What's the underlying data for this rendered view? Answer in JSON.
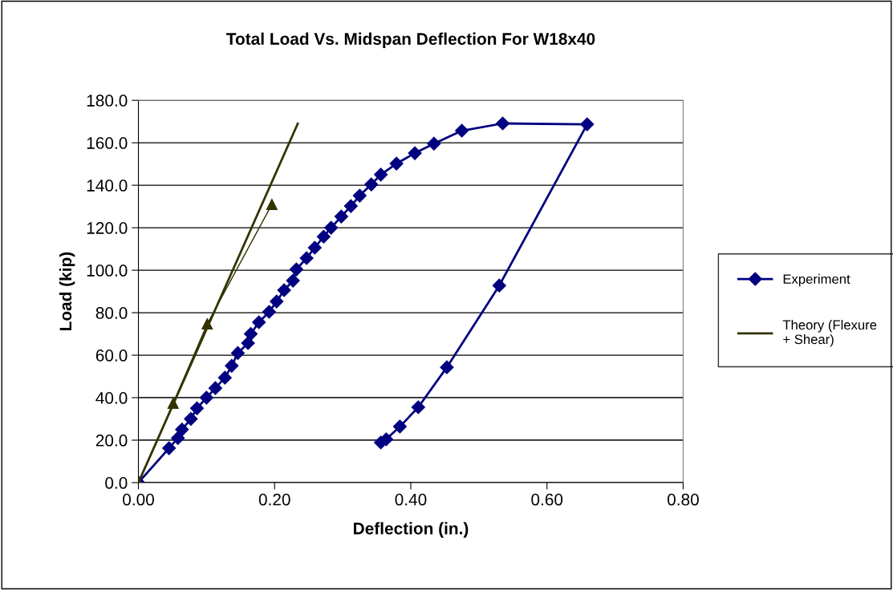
{
  "chart_data": {
    "type": "line",
    "title": "Total Load Vs. Midspan Deflection For W18x40",
    "xlabel": "Deflection (in.)",
    "ylabel": "Load (kip)",
    "xlim": [
      0,
      0.8
    ],
    "xticks": [
      {
        "value": 0,
        "label": "0.00"
      },
      {
        "value": 0.2,
        "label": "0.20"
      },
      {
        "value": 0.4,
        "label": "0.40"
      },
      {
        "value": 0.6,
        "label": "0.60"
      },
      {
        "value": 0.8,
        "label": "0.80"
      }
    ],
    "ylim": [
      0,
      180
    ],
    "yticks": [
      {
        "value": 0,
        "label": "0.0"
      },
      {
        "value": 20,
        "label": "20.0"
      },
      {
        "value": 40,
        "label": "40.0"
      },
      {
        "value": 60,
        "label": "60.0"
      },
      {
        "value": 80,
        "label": "80.0"
      },
      {
        "value": 100,
        "label": "100.0"
      },
      {
        "value": 120,
        "label": "120.0"
      },
      {
        "value": 140,
        "label": "140.0"
      },
      {
        "value": 160,
        "label": "160.0"
      },
      {
        "value": 180,
        "label": "180.0"
      }
    ],
    "grid": "y",
    "legend": "right",
    "series": [
      {
        "name": "Experiment",
        "color": "#000080",
        "marker": "diamond",
        "x": [
          0,
          0.045,
          0.058,
          0.064,
          0.077,
          0.086,
          0.1,
          0.113,
          0.127,
          0.137,
          0.146,
          0.161,
          0.165,
          0.177,
          0.192,
          0.203,
          0.214,
          0.227,
          0.232,
          0.247,
          0.259,
          0.272,
          0.283,
          0.298,
          0.312,
          0.325,
          0.342,
          0.356,
          0.379,
          0.406,
          0.434,
          0.475,
          0.535,
          0.659,
          0.53,
          0.453,
          0.411,
          0.384,
          0.364,
          0.356
        ],
        "values": [
          0,
          16.2,
          21,
          25,
          30,
          35,
          40,
          44.5,
          49.4,
          55,
          61,
          65.7,
          70,
          75.5,
          80.4,
          85.3,
          90.6,
          95.1,
          100.4,
          105.7,
          110.6,
          115.8,
          120,
          125.3,
          130.2,
          135.1,
          140.4,
          145,
          150.2,
          155.1,
          159.6,
          165.7,
          169.1,
          168.7,
          92.8,
          54.3,
          35.5,
          26.4,
          20.4,
          18.9
        ]
      },
      {
        "name": "Theory (Flexure\n+ Shear)",
        "color": "#333300",
        "x": [
          0,
          0.234
        ],
        "values": [
          0,
          169
        ]
      },
      {
        "color": "#333300",
        "marker": "triangle",
        "x": [
          0,
          0.051,
          0.101,
          0.196
        ],
        "values": [
          0,
          37.4,
          74.7,
          131
        ]
      }
    ]
  }
}
